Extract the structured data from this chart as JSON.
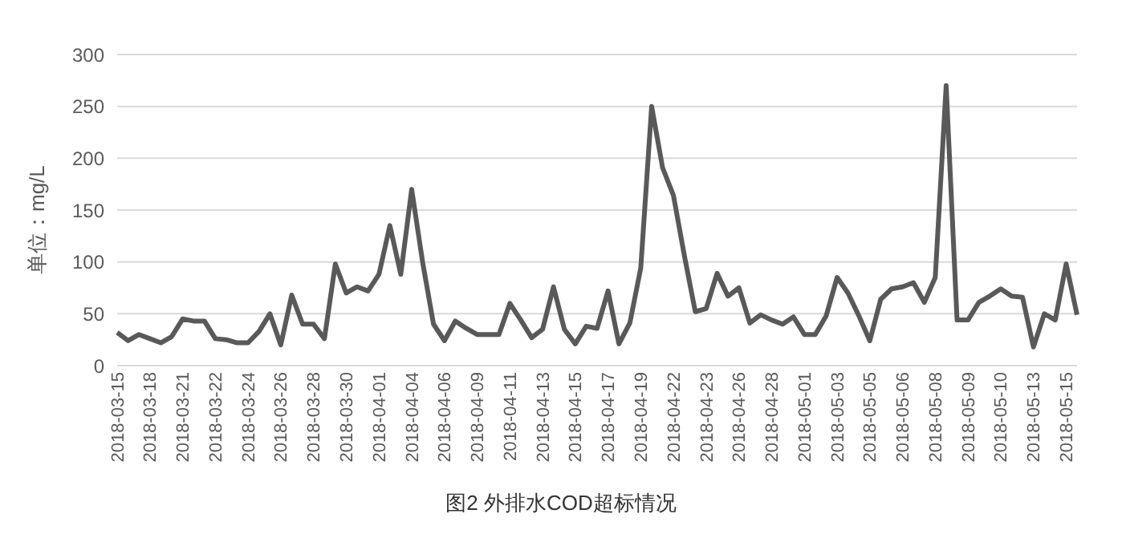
{
  "chart_data": {
    "type": "line",
    "title": "图2 外排水COD超标情况",
    "ylabel": "单位：mg/L",
    "categories": [
      "2018-03-15",
      null,
      null,
      "2018-03-18",
      null,
      null,
      "2018-03-21",
      null,
      null,
      "2018-03-22",
      null,
      null,
      "2018-03-24",
      null,
      null,
      "2018-03-26",
      null,
      null,
      "2018-03-28",
      null,
      null,
      "2018-03-30",
      null,
      null,
      "2018-04-01",
      null,
      null,
      "2018-04-04",
      null,
      null,
      "2018-04-06",
      null,
      null,
      "2018-04-09",
      null,
      null,
      "2018-04-11",
      null,
      null,
      "2018-04-13",
      null,
      null,
      "2018-04-15",
      null,
      null,
      "2018-04-17",
      null,
      null,
      "2018-04-19",
      null,
      null,
      "2018-04-22",
      null,
      null,
      "2018-04-23",
      null,
      null,
      "2018-04-26",
      null,
      null,
      "2018-04-28",
      null,
      null,
      "2018-05-01",
      null,
      null,
      "2018-05-03",
      null,
      null,
      "2018-05-05",
      null,
      null,
      "2018-05-06",
      null,
      null,
      "2018-05-08",
      null,
      null,
      "2018-05-09",
      null,
      null,
      "2018-05-10",
      null,
      null,
      "2018-05-13",
      null,
      null,
      "2018-05-15",
      null
    ],
    "series": [
      {
        "color": "#595959",
        "values": [
          32,
          24,
          30,
          26,
          22,
          28,
          45,
          43,
          43,
          26,
          25,
          22,
          22,
          33,
          50,
          20,
          68,
          40,
          40,
          26,
          98,
          70,
          76,
          72,
          88,
          135,
          88,
          170,
          100,
          40,
          24,
          43,
          36,
          30,
          30,
          30,
          60,
          44,
          27,
          35,
          76,
          35,
          21,
          38,
          36,
          72,
          21,
          41,
          94,
          250,
          191,
          164,
          106,
          52,
          55,
          89,
          67,
          75,
          41,
          49,
          44,
          40,
          47,
          30,
          30,
          48,
          85,
          70,
          48,
          24,
          64,
          74,
          76,
          80,
          61,
          85,
          270,
          44,
          44,
          61,
          67,
          74,
          67,
          66,
          18,
          50,
          44,
          98,
          49
        ]
      }
    ],
    "ylim": [
      0,
      300
    ],
    "yticks": [
      0,
      50,
      100,
      150,
      200,
      250,
      300
    ],
    "grid": "y",
    "legend": false,
    "marker": "none",
    "line_style": "solid"
  }
}
